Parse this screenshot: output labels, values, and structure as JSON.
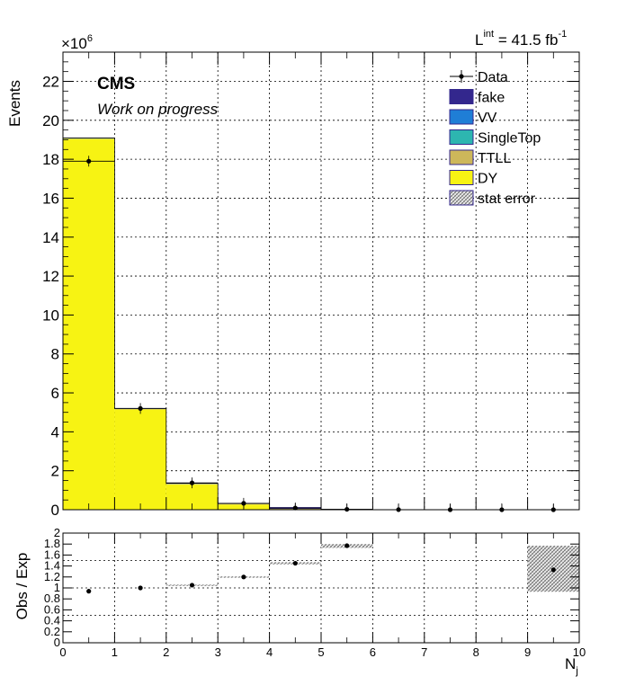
{
  "header": {
    "exponent": "×10",
    "exponent_power": "6",
    "lumi_prefix": "L",
    "lumi_sup": "int",
    "lumi_value": " = 41.5 fb",
    "lumi_unit_sup": "-1",
    "experiment": "CMS",
    "status": "Work on progress"
  },
  "colors": {
    "DY": "#f7f313",
    "TTLL": "#cdb75a",
    "SingleTop": "#2db6b0",
    "VV": "#1f7ed6",
    "fake": "#33278d",
    "data": "#000000"
  },
  "chart_data": [
    {
      "type": "bar",
      "subtype": "stacked-histogram",
      "ylabel": "Events",
      "xlabel": "N",
      "xlabel_sub": "j",
      "xlim": [
        0,
        10
      ],
      "ylim": [
        0,
        23.5
      ],
      "y_scale_note": "×10^6",
      "grid": true,
      "legend_position": "top-right",
      "bin_edges": [
        0,
        1,
        2,
        3,
        4,
        5,
        6,
        7,
        8,
        9,
        10
      ],
      "y_ticks": [
        0,
        2,
        4,
        6,
        8,
        10,
        12,
        14,
        16,
        18,
        20,
        22
      ],
      "x_ticks": [
        0,
        1,
        2,
        3,
        4,
        5,
        6,
        7,
        8,
        9,
        10
      ],
      "series": [
        {
          "name": "DY",
          "values": [
            19.05,
            5.15,
            1.3,
            0.27,
            0.04,
            0.008,
            0.002,
            0.0005,
            0.0001,
            3e-05
          ]
        },
        {
          "name": "TTLL",
          "values": [
            0.005,
            0.02,
            0.03,
            0.025,
            0.015,
            0.006,
            0.002,
            0.0005,
            0.0001,
            3e-05
          ]
        },
        {
          "name": "SingleTop",
          "values": [
            0.002,
            0.004,
            0.003,
            0.002,
            0.001,
            0.0004,
            0.0001,
            3e-05,
            1e-05,
            0.0
          ]
        },
        {
          "name": "VV",
          "values": [
            0.01,
            0.01,
            0.006,
            0.003,
            0.001,
            0.0003,
            0.0001,
            0.0,
            0.0,
            0.0
          ]
        },
        {
          "name": "fake",
          "values": [
            0.02,
            0.02,
            0.02,
            0.02,
            0.03,
            0.003,
            0.001,
            0.0003,
            0.0001,
            0.0
          ]
        }
      ],
      "data": {
        "name": "Data",
        "x": [
          0.5,
          1.5,
          2.5,
          3.5,
          4.5,
          5.5,
          6.5,
          7.5,
          8.5,
          9.5
        ],
        "values": [
          17.9,
          5.2,
          1.38,
          0.33,
          0.09,
          0.02,
          0.005,
          0.001,
          0.0003,
          0.0001
        ]
      },
      "legend": [
        "Data",
        "fake",
        "VV",
        "SingleTop",
        "TTLL",
        "DY",
        "stat error"
      ]
    },
    {
      "type": "scatter",
      "subtype": "ratio",
      "ylabel": "Obs / Exp",
      "xlabel": "N",
      "xlabel_sub": "j",
      "xlim": [
        0,
        10
      ],
      "ylim": [
        0,
        2
      ],
      "y_ticks": [
        0,
        0.2,
        0.4,
        0.6,
        0.8,
        1,
        1.2,
        1.4,
        1.6,
        1.8,
        2
      ],
      "y_tick_labels": [
        "0",
        "0.2",
        "0.4",
        "0.6",
        "0.8",
        "1",
        "1.2",
        "1.4",
        "1.6",
        "1.8",
        "2"
      ],
      "x_ticks": [
        0,
        1,
        2,
        3,
        4,
        5,
        6,
        7,
        8,
        9,
        10
      ],
      "x_tick_labels": [
        "0",
        "1",
        "2",
        "3",
        "4",
        "5",
        "6",
        "7",
        "8",
        "9",
        "10"
      ],
      "grid": true,
      "points": [
        {
          "x": 0.5,
          "y": 0.94
        },
        {
          "x": 1.5,
          "y": 1.0
        },
        {
          "x": 2.5,
          "y": 1.05
        },
        {
          "x": 3.5,
          "y": 1.2
        },
        {
          "x": 4.5,
          "y": 1.45
        },
        {
          "x": 5.5,
          "y": 1.77
        },
        {
          "x": 9.5,
          "y": 1.33
        }
      ],
      "stat_error_bands": [
        {
          "x0": 2,
          "x1": 3,
          "y0": 1.04,
          "y1": 1.06
        },
        {
          "x0": 3,
          "x1": 4,
          "y0": 1.19,
          "y1": 1.21
        },
        {
          "x0": 4,
          "x1": 5,
          "y0": 1.43,
          "y1": 1.47
        },
        {
          "x0": 5,
          "x1": 6,
          "y0": 1.73,
          "y1": 1.8
        },
        {
          "x0": 9,
          "x1": 10,
          "y0": 0.93,
          "y1": 1.77
        }
      ]
    }
  ]
}
